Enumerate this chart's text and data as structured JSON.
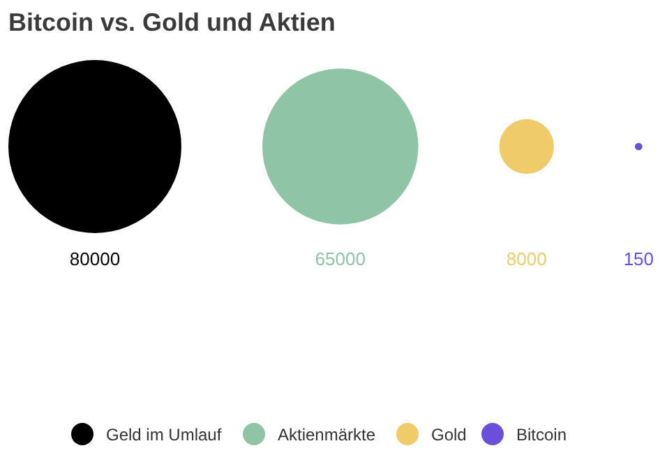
{
  "chart_data": {
    "type": "other",
    "title": "Bitcoin vs. Gold und Aktien",
    "categories": [
      "Geld im Umlauf",
      "Aktienmärkte",
      "Gold",
      "Bitcoin"
    ],
    "values": [
      80000,
      65000,
      8000,
      150
    ],
    "colors": [
      "#000000",
      "#8fc4a7",
      "#f0cb69",
      "#6c4fd8"
    ],
    "data_labels": true
  }
}
